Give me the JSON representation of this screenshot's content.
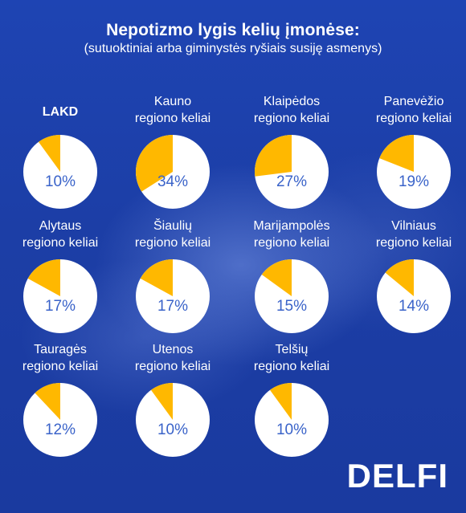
{
  "title": "Nepotizmo lygis kelių įmonėse:",
  "subtitle": "(sutuoktiniai arba giminystės ryšiais susiję asmenys)",
  "brand": "DELFI",
  "colors": {
    "background": "#1b3fa8",
    "slice": "#ffb800",
    "pie": "#ffffff",
    "percent_text": "#3a63c9"
  },
  "chart_data": {
    "type": "pie",
    "title": "Nepotizmo lygis kelių įmonėse:",
    "subtitle": "(sutuoktiniai arba giminystės ryšiais susiję asmenys)",
    "items": [
      {
        "label_lines": [
          "LAKD"
        ],
        "value": 10,
        "pct": "10%"
      },
      {
        "label_lines": [
          "Kauno",
          "regiono keliai"
        ],
        "value": 34,
        "pct": "34%"
      },
      {
        "label_lines": [
          "Klaipėdos",
          "regiono keliai"
        ],
        "value": 27,
        "pct": "27%"
      },
      {
        "label_lines": [
          "Panevėžio",
          "regiono keliai"
        ],
        "value": 19,
        "pct": "19%"
      },
      {
        "label_lines": [
          "Alytaus",
          "regiono keliai"
        ],
        "value": 17,
        "pct": "17%"
      },
      {
        "label_lines": [
          "Šiaulių",
          "regiono keliai"
        ],
        "value": 17,
        "pct": "17%"
      },
      {
        "label_lines": [
          "Marijampolės",
          "regiono keliai"
        ],
        "value": 15,
        "pct": "15%"
      },
      {
        "label_lines": [
          "Vilniaus",
          "regiono keliai"
        ],
        "value": 14,
        "pct": "14%"
      },
      {
        "label_lines": [
          "Tauragės",
          "regiono keliai"
        ],
        "value": 12,
        "pct": "12%"
      },
      {
        "label_lines": [
          "Utenos",
          "regiono keliai"
        ],
        "value": 10,
        "pct": "10%"
      },
      {
        "label_lines": [
          "Telšių",
          "regiono keliai"
        ],
        "value": 10,
        "pct": "10%"
      }
    ]
  }
}
